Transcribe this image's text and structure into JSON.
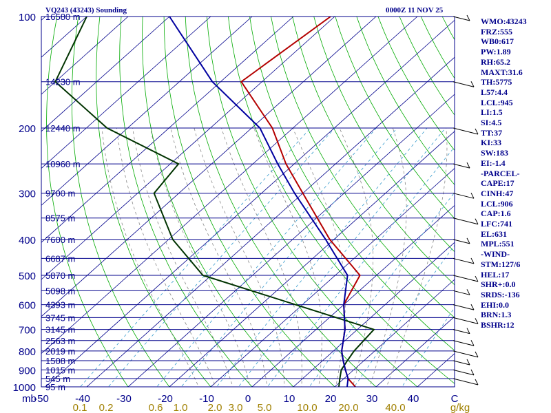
{
  "header": {
    "title_left": "VQ243 (43243) Sounding",
    "title_right": "0000Z 11 NOV 25"
  },
  "indices": [
    "WMO:43243",
    "FRZ:555",
    "WB0:617",
    "PW:1.89",
    "RH:65.2",
    "MAXT:31.6",
    "TH:5775",
    "L57:4.4",
    "LCL:945",
    "LI:1.5",
    "SI:4.5",
    "TT:37",
    "KI:33",
    "SW:183",
    "EI:-1.4",
    "-PARCEL-",
    "CAPE:17",
    "CINH:47",
    "LCL:906",
    "CAP:1.6",
    "LFC:741",
    "EL:631",
    "MPL:551",
    "-WIND-",
    "STM:127/6",
    "HEL:17",
    "SHR+:0.0",
    "SRDS:-136",
    "EHI:0.0",
    "BRN:1.3",
    "BSHR:12"
  ],
  "chart_data": {
    "type": "line",
    "chart_kind": "skew-t log-p sounding",
    "title": "VQ243 (43243) Sounding",
    "time": "0000Z 11 NOV 25",
    "y_axis": {
      "unit_label": "mb",
      "scale": "log",
      "range": [
        1000,
        100
      ],
      "ticks": [
        100,
        200,
        300,
        400,
        500,
        600,
        700,
        800,
        900,
        1000
      ]
    },
    "x_axis": {
      "unit": "°C",
      "range": [
        -50,
        50
      ],
      "skewed": true,
      "tick_labels": [
        "-50",
        "-40",
        "-30",
        "-20",
        "-10",
        "0",
        "10",
        "20",
        "30",
        "40",
        "C"
      ]
    },
    "mixing_ratio_axis": {
      "unit": "g/kg",
      "labels": [
        "0.1",
        "0.2",
        "0.6",
        "1.0",
        "2.0",
        "3.0",
        "5.0",
        "10.0",
        "20.0",
        "40.0",
        "g/kg"
      ]
    },
    "height_labels": [
      {
        "p": 100,
        "label": "16580 m"
      },
      {
        "p": 150,
        "label": "14230 m"
      },
      {
        "p": 200,
        "label": "12440 m"
      },
      {
        "p": 250,
        "label": "10960 m"
      },
      {
        "p": 300,
        "label": "9700 m"
      },
      {
        "p": 350,
        "label": "8575 m"
      },
      {
        "p": 400,
        "label": "7600 m"
      },
      {
        "p": 450,
        "label": "6687 m"
      },
      {
        "p": 500,
        "label": "5870 m"
      },
      {
        "p": 550,
        "label": "5098 m"
      },
      {
        "p": 600,
        "label": "4393 m"
      },
      {
        "p": 650,
        "label": "3745 m"
      },
      {
        "p": 700,
        "label": "3145 m"
      },
      {
        "p": 750,
        "label": "2563 m"
      },
      {
        "p": 800,
        "label": "2019 m"
      },
      {
        "p": 850,
        "label": "1508 m"
      },
      {
        "p": 900,
        "label": "1015 m"
      },
      {
        "p": 950,
        "label": "545 m"
      },
      {
        "p": 1000,
        "label": "95 m"
      }
    ],
    "series": [
      {
        "color": "#b40000",
        "points": [
          {
            "p": 1000,
            "t": 25
          },
          {
            "p": 950,
            "t": 21
          },
          {
            "p": 900,
            "t": 18
          },
          {
            "p": 850,
            "t": 15
          },
          {
            "p": 800,
            "t": 12
          },
          {
            "p": 700,
            "t": 7
          },
          {
            "p": 600,
            "t": 0
          },
          {
            "p": 500,
            "t": -4
          },
          {
            "p": 400,
            "t": -21
          },
          {
            "p": 300,
            "t": -40
          },
          {
            "p": 250,
            "t": -52
          },
          {
            "p": 200,
            "t": -65
          },
          {
            "p": 150,
            "t": -85
          },
          {
            "p": 100,
            "t": -81
          }
        ]
      },
      {
        "color": "#003300",
        "points": [
          {
            "p": 1000,
            "t": 21
          },
          {
            "p": 950,
            "t": 19
          },
          {
            "p": 900,
            "t": 17
          },
          {
            "p": 850,
            "t": 16
          },
          {
            "p": 800,
            "t": 15
          },
          {
            "p": 700,
            "t": 14
          },
          {
            "p": 500,
            "t": -42
          },
          {
            "p": 400,
            "t": -59
          },
          {
            "p": 300,
            "t": -76
          },
          {
            "p": 250,
            "t": -78
          },
          {
            "p": 200,
            "t": -105
          },
          {
            "p": 150,
            "t": -130
          },
          {
            "p": 100,
            "t": -140
          }
        ]
      },
      {
        "color": "#0000a0",
        "points": [
          {
            "p": 1000,
            "t": 23
          },
          {
            "p": 950,
            "t": 21
          },
          {
            "p": 900,
            "t": 18
          },
          {
            "p": 850,
            "t": 15
          },
          {
            "p": 800,
            "t": 12
          },
          {
            "p": 700,
            "t": 7
          },
          {
            "p": 600,
            "t": 0
          },
          {
            "p": 500,
            "t": -7
          },
          {
            "p": 400,
            "t": -22
          },
          {
            "p": 300,
            "t": -42
          },
          {
            "p": 250,
            "t": -54
          },
          {
            "p": 200,
            "t": -68
          },
          {
            "p": 150,
            "t": -92
          },
          {
            "p": 100,
            "t": -120
          }
        ]
      }
    ],
    "wind_barbs_note": "shown along right edge",
    "colors": {
      "isobar": "#00008b",
      "isotherm": "#00008b",
      "dry_adiabat": "#00aa00",
      "moist_adiabat": "#888888",
      "mixing_ratio": "#3399cc"
    }
  }
}
